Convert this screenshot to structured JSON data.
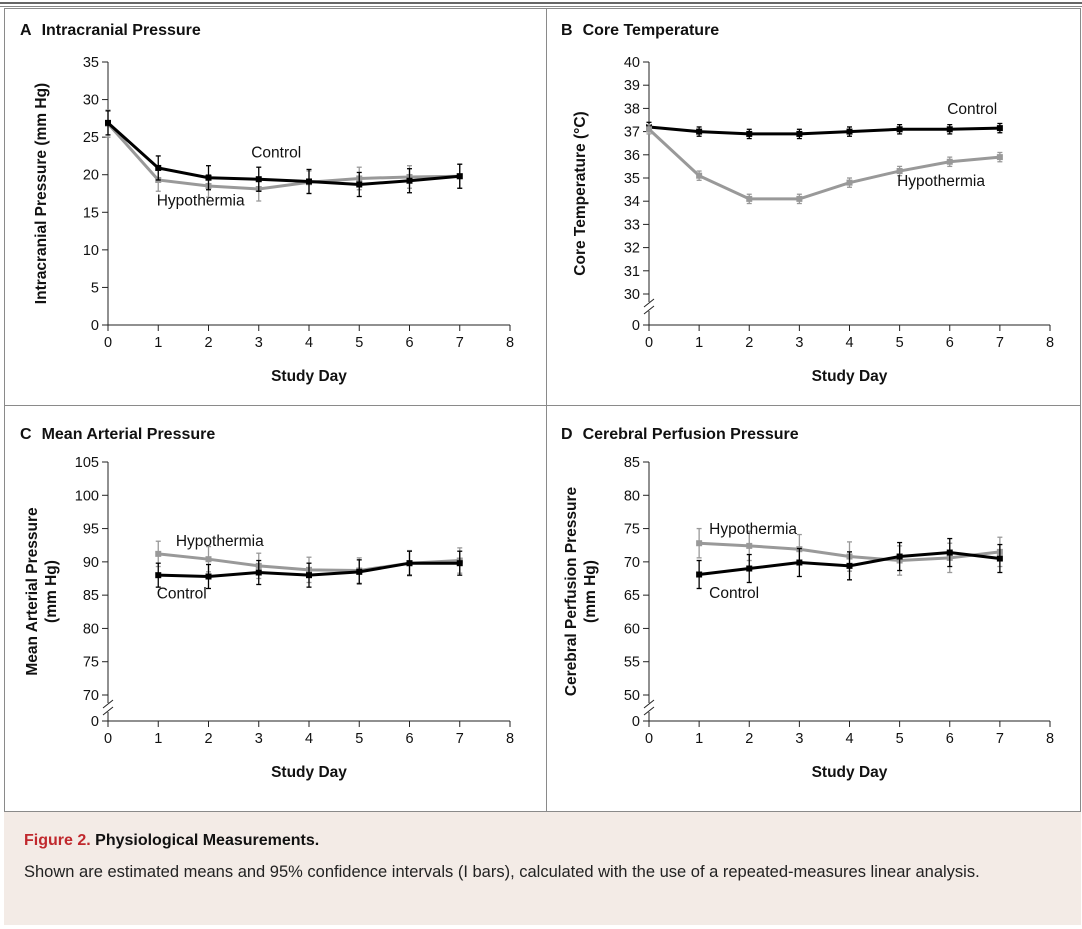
{
  "caption": {
    "figure_label": "Figure 2.",
    "title": "Physiological Measurements.",
    "text": "Shown are estimated means and 95% confidence intervals (I bars), calculated with the use of a repeated-measures linear analysis."
  },
  "colors": {
    "control": "#000000",
    "hypothermia": "#999999",
    "caption_bg": "#f3ebe6",
    "figure_label": "#c0282d"
  },
  "chart_data": [
    {
      "id": "A",
      "letter": "A",
      "title": "Intracranial Pressure",
      "type": "line",
      "xlabel": "Study Day",
      "ylabel": [
        "Intracranial Pressure (mm Hg)"
      ],
      "xlim": [
        0,
        8
      ],
      "xticks": [
        0,
        1,
        2,
        3,
        4,
        5,
        6,
        7,
        8
      ],
      "ylim": [
        0,
        35
      ],
      "yticks": [
        0,
        5,
        10,
        15,
        20,
        25,
        30,
        35
      ],
      "axis_break": false,
      "series": [
        {
          "name": "Hypothermia",
          "color": "#999999",
          "x": [
            0,
            1,
            2,
            3,
            4,
            5,
            6,
            7
          ],
          "y": [
            26.8,
            19.3,
            18.5,
            18.1,
            19.0,
            19.5,
            19.7,
            19.8
          ],
          "err": [
            1.8,
            1.5,
            1.5,
            1.6,
            1.5,
            1.5,
            1.5,
            1.6
          ]
        },
        {
          "name": "Control",
          "color": "#000000",
          "x": [
            0,
            1,
            2,
            3,
            4,
            5,
            6,
            7
          ],
          "y": [
            26.9,
            20.9,
            19.6,
            19.4,
            19.1,
            18.7,
            19.2,
            19.8
          ],
          "err": [
            1.6,
            1.6,
            1.6,
            1.6,
            1.6,
            1.6,
            1.6,
            1.6
          ]
        }
      ],
      "annotations": [
        {
          "text": "Control",
          "x": 2.85,
          "y": 22.3
        },
        {
          "text": "Hypothermia",
          "x": 0.97,
          "y": 15.9
        }
      ]
    },
    {
      "id": "B",
      "letter": "B",
      "title": "Core Temperature",
      "type": "line",
      "xlabel": "Study Day",
      "ylabel": [
        "Core Temperature (°C)"
      ],
      "xlim": [
        0,
        8
      ],
      "xticks": [
        0,
        1,
        2,
        3,
        4,
        5,
        6,
        7,
        8
      ],
      "ylim": [
        29.5,
        40
      ],
      "yticks": [
        30,
        31,
        32,
        33,
        34,
        35,
        36,
        37,
        38,
        39,
        40
      ],
      "axis_break": true,
      "series": [
        {
          "name": "Control",
          "color": "#000000",
          "x": [
            0,
            1,
            2,
            3,
            4,
            5,
            6,
            7
          ],
          "y": [
            37.2,
            37.0,
            36.9,
            36.9,
            37.0,
            37.1,
            37.1,
            37.15
          ],
          "err": [
            0.2,
            0.2,
            0.2,
            0.2,
            0.2,
            0.2,
            0.2,
            0.2
          ]
        },
        {
          "name": "Hypothermia",
          "color": "#999999",
          "x": [
            0,
            1,
            2,
            3,
            4,
            5,
            6,
            7
          ],
          "y": [
            37.1,
            35.1,
            34.1,
            34.1,
            34.8,
            35.3,
            35.7,
            35.9
          ],
          "err": [
            0.2,
            0.2,
            0.2,
            0.2,
            0.2,
            0.2,
            0.2,
            0.2
          ]
        }
      ],
      "annotations": [
        {
          "text": "Control",
          "x": 5.95,
          "y": 37.75
        },
        {
          "text": "Hypothermia",
          "x": 4.95,
          "y": 34.65
        }
      ]
    },
    {
      "id": "C",
      "letter": "C",
      "title": "Mean Arterial Pressure",
      "type": "line",
      "xlabel": "Study Day",
      "ylabel": [
        "Mean Arterial Pressure",
        "(mm Hg)"
      ],
      "xlim": [
        0,
        8
      ],
      "xticks": [
        0,
        1,
        2,
        3,
        4,
        5,
        6,
        7,
        8
      ],
      "ylim": [
        68,
        105
      ],
      "yticks": [
        70,
        75,
        80,
        85,
        90,
        95,
        100,
        105
      ],
      "axis_break": true,
      "series": [
        {
          "name": "Hypothermia",
          "color": "#999999",
          "x": [
            1,
            2,
            3,
            4,
            5,
            6,
            7
          ],
          "y": [
            91.2,
            90.4,
            89.4,
            88.8,
            88.7,
            89.8,
            90.2
          ],
          "err": [
            1.9,
            1.9,
            1.9,
            1.9,
            1.9,
            1.9,
            1.9
          ]
        },
        {
          "name": "Control",
          "color": "#000000",
          "x": [
            1,
            2,
            3,
            4,
            5,
            6,
            7
          ],
          "y": [
            88.0,
            87.8,
            88.4,
            88.0,
            88.5,
            89.8,
            89.8
          ],
          "err": [
            1.8,
            1.8,
            1.8,
            1.8,
            1.8,
            1.8,
            1.8
          ]
        }
      ],
      "annotations": [
        {
          "text": "Hypothermia",
          "x": 1.35,
          "y": 92.4
        },
        {
          "text": "Control",
          "x": 0.97,
          "y": 84.5
        }
      ]
    },
    {
      "id": "D",
      "letter": "D",
      "title": "Cerebral Perfusion Pressure",
      "type": "line",
      "xlabel": "Study Day",
      "ylabel": [
        "Cerebral Perfusion Pressure",
        "(mm Hg)"
      ],
      "xlim": [
        0,
        8
      ],
      "xticks": [
        0,
        1,
        2,
        3,
        4,
        5,
        6,
        7,
        8
      ],
      "ylim": [
        48,
        85
      ],
      "yticks": [
        50,
        55,
        60,
        65,
        70,
        75,
        80,
        85
      ],
      "axis_break": true,
      "series": [
        {
          "name": "Hypothermia",
          "color": "#999999",
          "x": [
            1,
            2,
            3,
            4,
            5,
            6,
            7
          ],
          "y": [
            72.8,
            72.4,
            71.9,
            70.8,
            70.2,
            70.6,
            71.5
          ],
          "err": [
            2.2,
            2.2,
            2.2,
            2.2,
            2.2,
            2.2,
            2.2
          ]
        },
        {
          "name": "Control",
          "color": "#000000",
          "x": [
            1,
            2,
            3,
            4,
            5,
            6,
            7
          ],
          "y": [
            68.1,
            69.0,
            69.9,
            69.4,
            70.8,
            71.4,
            70.5
          ],
          "err": [
            2.1,
            2.1,
            2.1,
            2.1,
            2.1,
            2.1,
            2.1
          ]
        }
      ],
      "annotations": [
        {
          "text": "Hypothermia",
          "x": 1.2,
          "y": 74.2
        },
        {
          "text": "Control",
          "x": 1.2,
          "y": 64.6
        }
      ]
    }
  ]
}
